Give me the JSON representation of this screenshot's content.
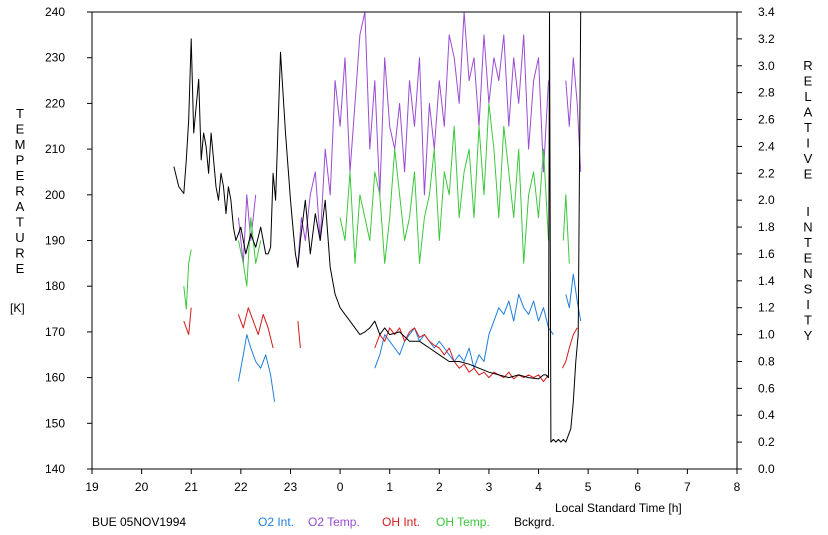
{
  "chart_data": {
    "type": "line",
    "footer_label": "BUE 05NOV1994",
    "xlabel": "Local Standard Time [h]",
    "x_ticks": [
      "19",
      "20",
      "21",
      "22",
      "23",
      "0",
      "1",
      "2",
      "3",
      "4",
      "5",
      "6",
      "7",
      "8"
    ],
    "x_range": [
      19,
      32
    ],
    "y_left": {
      "label_letters": [
        "T",
        "E",
        "M",
        "P",
        "E",
        "R",
        "A",
        "T",
        "U",
        "R",
        "E"
      ],
      "unit": "[K]",
      "range": [
        140,
        240
      ],
      "ticks": [
        "140",
        "150",
        "160",
        "170",
        "180",
        "190",
        "200",
        "210",
        "220",
        "230",
        "240"
      ]
    },
    "y_right": {
      "label_word1": [
        "R",
        "E",
        "L",
        "A",
        "T",
        "I",
        "V",
        "E"
      ],
      "label_word2": [
        "I",
        "N",
        "T",
        "E",
        "N",
        "S",
        "I",
        "T",
        "Y"
      ],
      "range": [
        0.0,
        3.4
      ],
      "ticks": [
        "0.0",
        "0.2",
        "0.4",
        "0.6",
        "0.8",
        "1.0",
        "1.2",
        "1.4",
        "1.6",
        "1.8",
        "2.0",
        "2.2",
        "2.4",
        "2.6",
        "2.8",
        "3.0",
        "3.2",
        "3.4"
      ]
    },
    "grid": false,
    "series": [
      {
        "name": "O2 Int.",
        "axis": "right",
        "color": "#1f7fdc",
        "segments": [
          {
            "x": [
              21.95,
              22.05,
              22.12,
              22.2,
              22.3,
              22.4,
              22.5,
              22.6,
              22.68
            ],
            "y": [
              0.65,
              0.85,
              1.0,
              0.9,
              0.8,
              0.75,
              0.85,
              0.7,
              0.5
            ]
          },
          {
            "x": [
              24.7,
              24.8,
              24.9,
              25.0,
              25.1,
              25.2,
              25.3,
              25.4,
              25.5,
              25.6,
              25.7,
              25.8,
              25.9,
              26.0,
              26.1,
              26.2,
              26.3,
              26.4,
              26.5,
              26.6,
              26.7,
              26.8,
              26.9,
              27.0,
              27.1,
              27.2,
              27.3,
              27.4,
              27.5,
              27.6,
              27.7,
              27.8,
              27.9,
              28.0,
              28.1,
              28.2,
              28.3
            ],
            "y": [
              0.75,
              0.85,
              1.0,
              0.95,
              0.9,
              0.85,
              0.95,
              1.0,
              1.05,
              0.95,
              1.0,
              0.95,
              0.9,
              0.95,
              0.9,
              0.85,
              0.8,
              0.85,
              0.8,
              0.9,
              0.75,
              0.85,
              0.8,
              1.0,
              1.1,
              1.2,
              1.15,
              1.25,
              1.1,
              1.3,
              1.2,
              1.15,
              1.25,
              1.1,
              1.2,
              1.05,
              1.0
            ]
          },
          {
            "x": [
              28.55,
              28.62,
              28.7,
              28.78,
              28.85
            ],
            "y": [
              1.3,
              1.2,
              1.45,
              1.25,
              1.1
            ]
          }
        ]
      },
      {
        "name": "O2 Temp.",
        "axis": "left",
        "color": "#9a4cd2",
        "segments": [
          {
            "x": [
              21.95,
              22.05,
              22.12,
              22.2,
              22.3
            ],
            "y": [
              195,
              185,
              200,
              190,
              200
            ]
          },
          {
            "x": [
              23.15,
              23.22,
              23.3,
              23.4,
              23.5,
              23.6,
              23.7,
              23.8,
              23.9,
              24.0,
              24.1,
              24.2,
              24.3,
              24.4,
              24.5,
              24.6,
              24.7,
              24.8,
              24.9,
              25.0,
              25.1,
              25.2,
              25.3,
              25.4,
              25.5,
              25.6,
              25.7,
              25.8,
              25.9,
              26.0,
              26.1,
              26.2,
              26.3,
              26.4,
              26.5,
              26.6,
              26.7,
              26.8,
              26.9,
              27.0,
              27.1,
              27.2,
              27.3,
              27.4,
              27.5,
              27.6,
              27.7,
              27.8,
              27.9,
              28.0,
              28.1,
              28.2
            ],
            "y": [
              185,
              195,
              190,
              200,
              205,
              190,
              210,
              200,
              225,
              215,
              230,
              205,
              220,
              235,
              240,
              210,
              225,
              200,
              230,
              215,
              210,
              220,
              205,
              225,
              215,
              230,
              200,
              220,
              210,
              225,
              215,
              235,
              230,
              220,
              240,
              225,
              230,
              215,
              235,
              220,
              230,
              225,
              235,
              215,
              230,
              220,
              235,
              210,
              225,
              230,
              205,
              225
            ]
          },
          {
            "x": [
              28.55,
              28.62,
              28.7,
              28.78,
              28.85
            ],
            "y": [
              225,
              215,
              230,
              220,
              205
            ]
          }
        ]
      },
      {
        "name": "OH Int.",
        "axis": "right",
        "color": "#d41a1a",
        "segments": [
          {
            "x": [
              20.85,
              20.9,
              20.95,
              21.0
            ],
            "y": [
              1.1,
              1.05,
              1.0,
              1.2
            ]
          },
          {
            "x": [
              21.95,
              22.05,
              22.15,
              22.25,
              22.35,
              22.45,
              22.55,
              22.65
            ],
            "y": [
              1.15,
              1.05,
              1.2,
              1.1,
              1.0,
              1.15,
              1.05,
              0.9
            ]
          },
          {
            "x": [
              23.15,
              23.2
            ],
            "y": [
              1.1,
              0.9
            ]
          },
          {
            "x": [
              24.7,
              24.8,
              24.9,
              25.0,
              25.1,
              25.2,
              25.3,
              25.4,
              25.5,
              25.6,
              25.7,
              25.8,
              25.9,
              26.0,
              26.1,
              26.2,
              26.3,
              26.4,
              26.5,
              26.6,
              26.7,
              26.8,
              26.9,
              27.0,
              27.1,
              27.2,
              27.3,
              27.4,
              27.5,
              27.6,
              27.7,
              27.8,
              27.9,
              28.0,
              28.1,
              28.2
            ],
            "y": [
              0.9,
              1.0,
              0.95,
              1.05,
              1.0,
              1.05,
              0.95,
              1.02,
              1.05,
              0.98,
              1.0,
              0.95,
              0.92,
              0.9,
              0.85,
              0.9,
              0.8,
              0.75,
              0.78,
              0.72,
              0.75,
              0.7,
              0.72,
              0.68,
              0.72,
              0.7,
              0.68,
              0.72,
              0.67,
              0.7,
              0.68,
              0.7,
              0.68,
              0.7,
              0.65,
              0.7
            ]
          },
          {
            "x": [
              28.48,
              28.55,
              28.62,
              28.7,
              28.78
            ],
            "y": [
              0.75,
              0.8,
              0.9,
              1.0,
              1.05
            ]
          }
        ]
      },
      {
        "name": "OH Temp.",
        "axis": "left",
        "color": "#3cc83c",
        "segments": [
          {
            "x": [
              20.85,
              20.9,
              20.95,
              21.0
            ],
            "y": [
              180,
              175,
              185,
              188
            ]
          },
          {
            "x": [
              21.95,
              22.05,
              22.12,
              22.2,
              22.3,
              22.4
            ],
            "y": [
              190,
              185,
              180,
              195,
              185,
              190
            ]
          },
          {
            "x": [
              24.0,
              24.1,
              24.2,
              24.3,
              24.4,
              24.5,
              24.6,
              24.7,
              24.8,
              24.9,
              25.0,
              25.1,
              25.2,
              25.3,
              25.4,
              25.5,
              25.6,
              25.7,
              25.8,
              25.9,
              26.0,
              26.1,
              26.2,
              26.3,
              26.4,
              26.5,
              26.6,
              26.7,
              26.8,
              26.9,
              27.0,
              27.1,
              27.2,
              27.3,
              27.4,
              27.5,
              27.6,
              27.7,
              27.8,
              27.9,
              28.0,
              28.1,
              28.2
            ],
            "y": [
              195,
              190,
              205,
              185,
              200,
              195,
              190,
              205,
              200,
              185,
              195,
              210,
              200,
              190,
              195,
              205,
              185,
              195,
              200,
              210,
              190,
              205,
              200,
              215,
              195,
              205,
              210,
              195,
              215,
              200,
              220,
              210,
              195,
              215,
              205,
              195,
              210,
              185,
              200,
              205,
              195,
              210,
              190
            ]
          },
          {
            "x": [
              28.5,
              28.55,
              28.62
            ],
            "y": [
              190,
              200,
              185
            ]
          }
        ]
      },
      {
        "name": "Bckgrd.",
        "axis": "right",
        "color": "#000000",
        "segments": [
          {
            "x": [
              20.65,
              20.75,
              20.85,
              20.9,
              20.95,
              21.0,
              21.05,
              21.1,
              21.15,
              21.2,
              21.25,
              21.3,
              21.35,
              21.4,
              21.45,
              21.5,
              21.55,
              21.6,
              21.65,
              21.7,
              21.75,
              21.8,
              21.85,
              21.9,
              21.95,
              22.0,
              22.1,
              22.2,
              22.3,
              22.4,
              22.5,
              22.55,
              22.6,
              22.65,
              22.7,
              22.8,
              22.9,
              23.0,
              23.05,
              23.1,
              23.15,
              23.2,
              23.3,
              23.4,
              23.5,
              23.6,
              23.7,
              23.8,
              23.9,
              23.95,
              24.0,
              24.1,
              24.2,
              24.3,
              24.4,
              24.5,
              24.6,
              24.7,
              24.8,
              24.9,
              25.0,
              25.2,
              25.4,
              25.6,
              25.8,
              26.0,
              26.2,
              26.4,
              26.6,
              26.8,
              27.0,
              27.2,
              27.4,
              27.6,
              27.8,
              28.0,
              28.1,
              28.15,
              28.2,
              28.22,
              28.25,
              28.3,
              28.35,
              28.4,
              28.45,
              28.5,
              28.55,
              28.6,
              28.65,
              28.7,
              28.75,
              28.8,
              28.85
            ],
            "y": [
              2.25,
              2.1,
              2.05,
              2.3,
              2.6,
              3.2,
              2.5,
              2.7,
              2.9,
              2.3,
              2.5,
              2.4,
              2.2,
              2.5,
              2.3,
              2.1,
              2.0,
              2.2,
              2.1,
              1.9,
              2.1,
              2.0,
              1.8,
              1.7,
              1.75,
              1.8,
              1.6,
              1.75,
              1.65,
              1.8,
              1.6,
              1.6,
              1.65,
              2.2,
              2.0,
              3.1,
              2.5,
              2.0,
              1.8,
              1.6,
              1.5,
              1.7,
              2.0,
              1.6,
              1.9,
              1.7,
              2.0,
              1.5,
              1.3,
              1.25,
              1.2,
              1.15,
              1.1,
              1.05,
              1.0,
              1.02,
              1.05,
              1.1,
              1.0,
              1.05,
              1.0,
              1.02,
              0.95,
              0.95,
              0.9,
              0.85,
              0.8,
              0.8,
              0.78,
              0.75,
              0.72,
              0.7,
              0.68,
              0.7,
              0.68,
              0.67,
              0.7,
              0.7,
              0.68,
              3.4,
              0.2,
              0.22,
              0.2,
              0.22,
              0.2,
              0.22,
              0.2,
              0.25,
              0.3,
              0.5,
              0.8,
              1.0,
              3.4
            ]
          }
        ]
      }
    ]
  }
}
